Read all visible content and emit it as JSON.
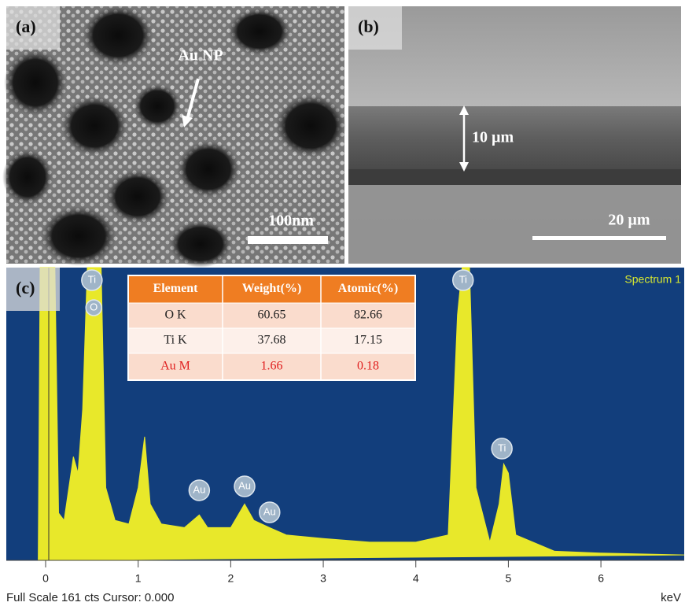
{
  "panels": {
    "a": {
      "label": "(a)",
      "annotation": "Au NP",
      "scale_bar": "100nm"
    },
    "b": {
      "label": "(b)",
      "thickness": "10 µm",
      "scale_bar": "20 µm"
    },
    "c": {
      "label": "(c)",
      "spectrum_name": "Spectrum 1",
      "status": "Full Scale 161 cts Cursor: 0.000"
    }
  },
  "table": {
    "header": [
      "Element",
      "Weight(%)",
      "Atomic(%)"
    ],
    "rows": [
      [
        "O K",
        60.65,
        82.66
      ],
      [
        "Ti K",
        37.68,
        17.15
      ],
      [
        "Au M",
        1.66,
        0.18
      ]
    ]
  },
  "chart_data": {
    "type": "line",
    "x_label": "keV",
    "color": "#e8e82a",
    "xlim": [
      -0.425,
      6.9
    ],
    "xticks": [
      0,
      1,
      2,
      3,
      4,
      5,
      6
    ],
    "ylim": [
      0,
      161
    ],
    "x": [
      -0.08,
      -0.06,
      0.1,
      0.14,
      0.2,
      0.3,
      0.35,
      0.4,
      0.45,
      0.6,
      0.65,
      0.75,
      0.9,
      1.0,
      1.07,
      1.13,
      1.25,
      1.5,
      1.66,
      1.75,
      2.0,
      2.15,
      2.25,
      2.42,
      2.6,
      3.0,
      3.5,
      4.0,
      4.35,
      4.45,
      4.5,
      4.58,
      4.65,
      4.8,
      4.9,
      4.95,
      5.0,
      5.08,
      5.5,
      6.0,
      6.9
    ],
    "series": [
      {
        "name": "Spectrum 1",
        "values": [
          0,
          161,
          161,
          26,
          22,
          57,
          48,
          83,
          161,
          161,
          40,
          22,
          20,
          40,
          68,
          31,
          20,
          18,
          25,
          18,
          18,
          31,
          22,
          18,
          14,
          12,
          10,
          10,
          14,
          135,
          161,
          161,
          40,
          10,
          31,
          53,
          48,
          14,
          5,
          4,
          3
        ]
      }
    ],
    "annotations": [
      {
        "text": "Ti",
        "x": 0.5
      },
      {
        "text": "O",
        "x": 0.52
      },
      {
        "text": "Au",
        "x": 1.66
      },
      {
        "text": "Au",
        "x": 2.15
      },
      {
        "text": "Au",
        "x": 2.42
      },
      {
        "text": "Ti",
        "x": 4.51
      },
      {
        "text": "Ti",
        "x": 4.93
      }
    ]
  }
}
